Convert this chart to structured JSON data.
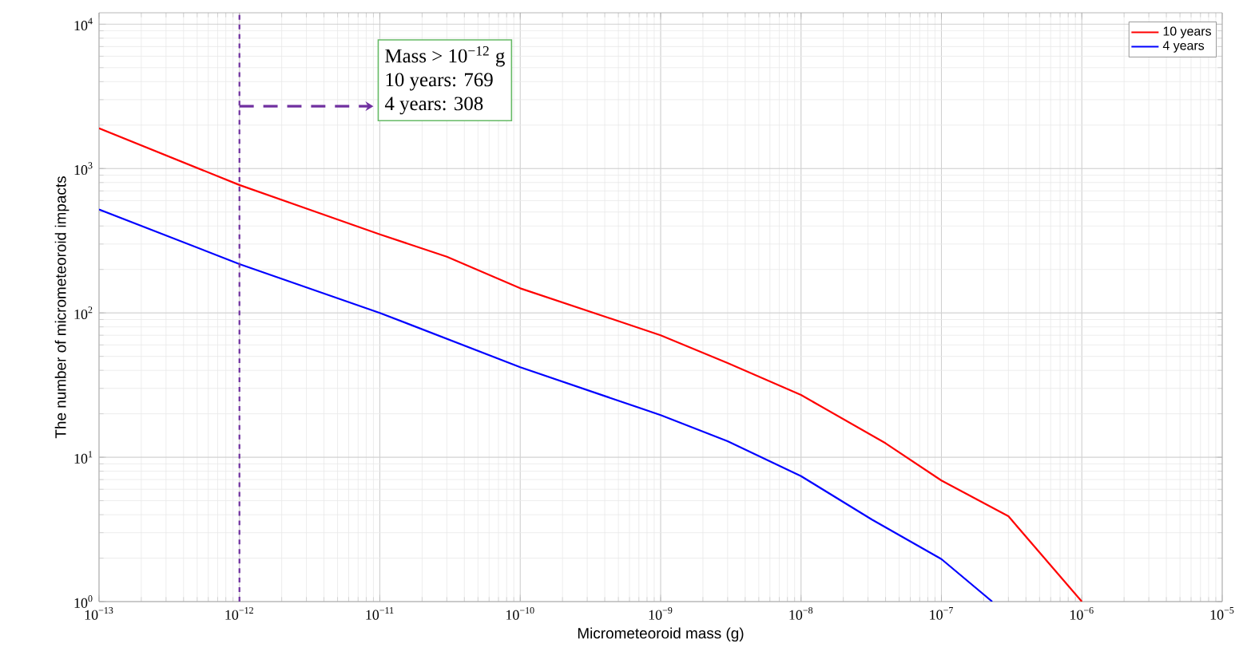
{
  "chart_data": {
    "type": "line",
    "xlabel": "Micrometeoroid mass (g)",
    "ylabel": "The number of micrometeoroid impacts",
    "log": "xy",
    "grid": true,
    "legend": "top right",
    "line_style": "solid",
    "marker": "none",
    "xlim": [
      1e-13,
      1e-05
    ],
    "ylim": [
      1,
      12000
    ],
    "xticks": [
      {
        "value": 1e-13,
        "label": "10$^{−13}$"
      },
      {
        "value": 1e-12,
        "label": "10$^{−12}$"
      },
      {
        "value": 1e-11,
        "label": "10$^{−11}$"
      },
      {
        "value": 1e-10,
        "label": "10$^{−10}$"
      },
      {
        "value": 1e-09,
        "label": "10$^{−9}$"
      },
      {
        "value": 1e-08,
        "label": "10$^{−8}$"
      },
      {
        "value": 1e-07,
        "label": "10$^{−7}$"
      },
      {
        "value": 1e-06,
        "label": "10$^{−6}$"
      },
      {
        "value": 1e-05,
        "label": "10$^{−5}$"
      }
    ],
    "yticks": [
      {
        "value": 1,
        "label": "10$^{0}$"
      },
      {
        "value": 10,
        "label": "10$^{1}$"
      },
      {
        "value": 100,
        "label": "10$^{2}$"
      },
      {
        "value": 1000,
        "label": "10$^{3}$"
      },
      {
        "value": 10000,
        "label": "10$^{4}$"
      }
    ],
    "series": [
      {
        "name": "10 years",
        "color": "#ff0000",
        "x": [
          1e-13,
          1e-12,
          1e-11,
          3e-11,
          1e-10,
          1e-09,
          3e-09,
          1e-08,
          4e-08,
          1e-07,
          3e-07,
          1e-06
        ],
        "values": [
          1900,
          769,
          350,
          245,
          148,
          70,
          45,
          27,
          12.5,
          6.9,
          3.9,
          1
        ]
      },
      {
        "name": "4 years",
        "color": "#0000ff",
        "x": [
          1e-13,
          1e-12,
          1e-11,
          1e-10,
          1e-09,
          3e-09,
          1e-08,
          3.2e-08,
          1e-07,
          2.3e-07
        ],
        "values": [
          520,
          218,
          100,
          42,
          19.6,
          12.9,
          7.4,
          3.7,
          1.97,
          1
        ]
      }
    ],
    "ref_lines": [
      {
        "axis": "x",
        "value": 1e-12,
        "color": "#7030a0",
        "line_style": "dashed"
      }
    ],
    "annotations": [
      "Mass > 10$^{−12}$ g",
      "10 years: 769",
      "4   years: 308"
    ]
  }
}
